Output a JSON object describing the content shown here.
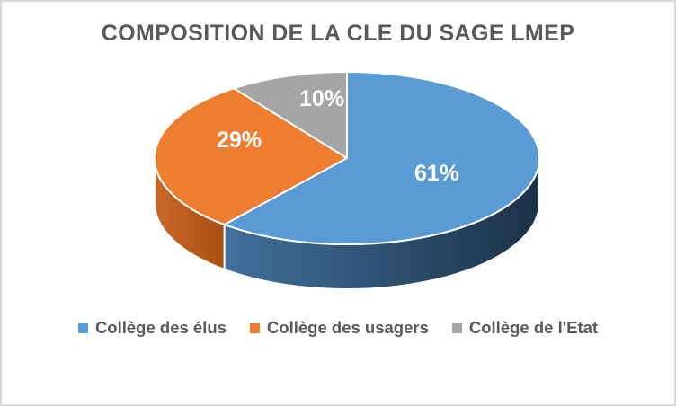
{
  "frame": {
    "background_color": "#FFFFFF",
    "border_color": "#D8D8D8"
  },
  "chart_data": {
    "type": "pie",
    "style": "3d",
    "title": "COMPOSITION DE LA CLE DU SAGE LMEP",
    "title_color": "#595959",
    "start_angle_deg": 0,
    "direction": "clockwise",
    "slices": [
      {
        "label": "Collège des élus",
        "value_pct": 61,
        "data_label": "61%",
        "color": "#5B9BD5",
        "side_color_light": "#41719C",
        "side_color_dark": "#1C3148"
      },
      {
        "label": "Collège des usagers",
        "value_pct": 29,
        "data_label": "29%",
        "color": "#ED7D31",
        "side_color_light": "#C96829",
        "side_color_dark": "#A85013"
      },
      {
        "label": "Collège de l'Etat",
        "value_pct": 10,
        "data_label": "10%",
        "color": "#A5A5A5",
        "side_color_light": "#7F7F7F",
        "side_color_dark": "#6E6E6E"
      }
    ],
    "data_label_color": "#FFFFFF",
    "legend": {
      "position": "bottom",
      "orientation": "horizontal",
      "text_color": "#595959"
    }
  }
}
